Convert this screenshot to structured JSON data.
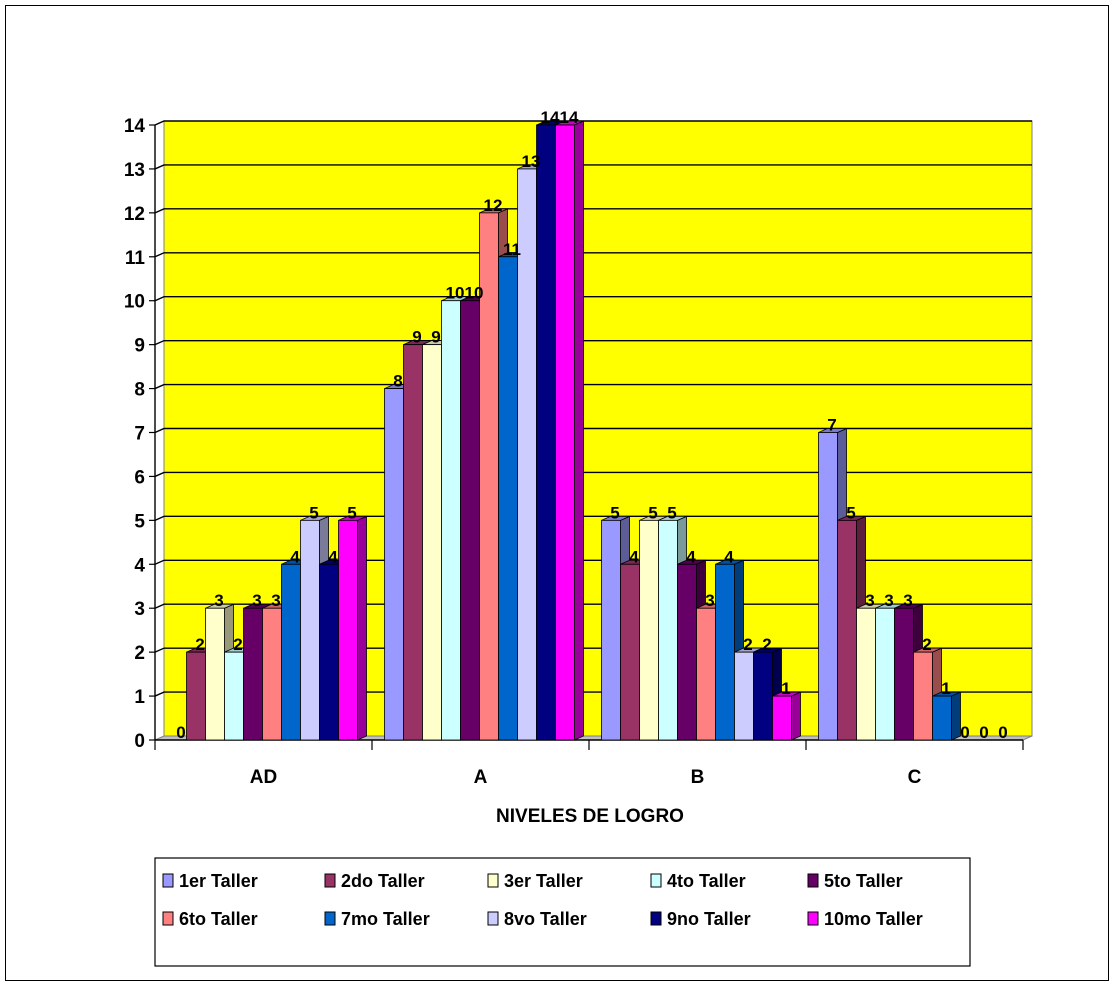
{
  "chart_data": {
    "type": "bar",
    "title": "",
    "xlabel": "NIVELES DE LOGRO",
    "ylabel": "",
    "ylim": [
      0,
      14
    ],
    "yticks": [
      0,
      1,
      2,
      3,
      4,
      5,
      6,
      7,
      8,
      9,
      10,
      11,
      12,
      13,
      14
    ],
    "grid": true,
    "legend_position": "bottom",
    "categories": [
      "AD",
      "A",
      "B",
      "C"
    ],
    "series": [
      {
        "name": "1er Taller",
        "color": "#9999FF",
        "values": [
          0,
          8,
          5,
          7
        ]
      },
      {
        "name": "2do Taller",
        "color": "#993366",
        "values": [
          2,
          9,
          4,
          5
        ]
      },
      {
        "name": "3er Taller",
        "color": "#FFFFCC",
        "values": [
          3,
          9,
          5,
          3
        ]
      },
      {
        "name": "4to Taller",
        "color": "#CCFFFF",
        "values": [
          2,
          10,
          5,
          3
        ]
      },
      {
        "name": "5to Taller",
        "color": "#660066",
        "values": [
          3,
          10,
          4,
          3
        ]
      },
      {
        "name": "6to Taller",
        "color": "#FF8080",
        "values": [
          3,
          12,
          3,
          2
        ]
      },
      {
        "name": "7mo Taller",
        "color": "#0066CC",
        "values": [
          4,
          11,
          4,
          1
        ]
      },
      {
        "name": "8vo Taller",
        "color": "#CCCCFF",
        "values": [
          5,
          13,
          2,
          0
        ]
      },
      {
        "name": "9no Taller",
        "color": "#000080",
        "values": [
          4,
          14,
          2,
          0
        ]
      },
      {
        "name": "10mo Taller",
        "color": "#FF00FF",
        "values": [
          5,
          14,
          1,
          0
        ]
      }
    ],
    "plot_background": "#FFFF00"
  }
}
